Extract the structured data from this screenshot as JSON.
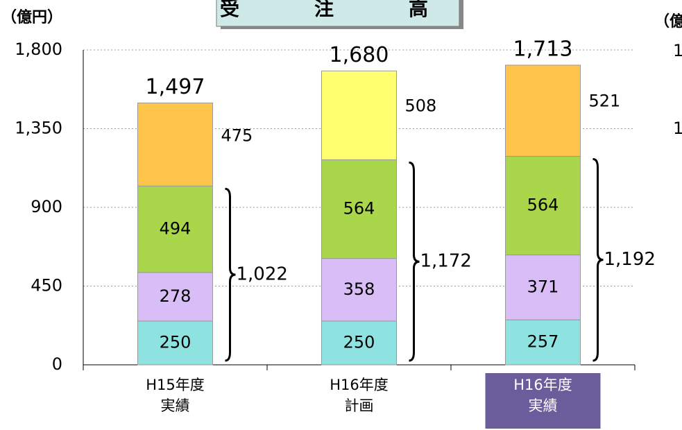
{
  "chart_data": {
    "type": "stacked-bar",
    "title": "受　注　高",
    "y_unit": "（億円）",
    "categories": [
      [
        "H15年度",
        "実績"
      ],
      [
        "H16年度",
        "計画"
      ],
      [
        "H16年度",
        "実績"
      ]
    ],
    "highlight_category": 2,
    "series": [
      {
        "color": "#8ee3e0",
        "values": [
          250,
          250,
          257
        ]
      },
      {
        "color": "#d9bdf7",
        "values": [
          278,
          358,
          371
        ]
      },
      {
        "color": "#a9d64a",
        "values": [
          494,
          564,
          564
        ]
      },
      {
        "colors": [
          "#ffc54a",
          "#ffff70",
          "#ffc54a"
        ],
        "values": [
          475,
          508,
          521
        ]
      }
    ],
    "totals": {
      "values": [
        1497,
        1680,
        1713
      ],
      "value_labels": [
        "1,497",
        "1,680",
        "1,713"
      ]
    },
    "brace_totals": {
      "values": [
        1022,
        1172,
        1192
      ],
      "value_labels": [
        "1,022",
        "1,172",
        "1,192"
      ]
    },
    "ylim": [
      0,
      1800
    ],
    "yticks": [
      0,
      450,
      900,
      {
        "value": 1350,
        "label": "1,350"
      },
      {
        "value": 1800,
        "label": "1,800"
      }
    ],
    "grid": true,
    "right_fragment": {
      "unit": "（億",
      "ticks": [
        "1",
        "1"
      ]
    }
  }
}
